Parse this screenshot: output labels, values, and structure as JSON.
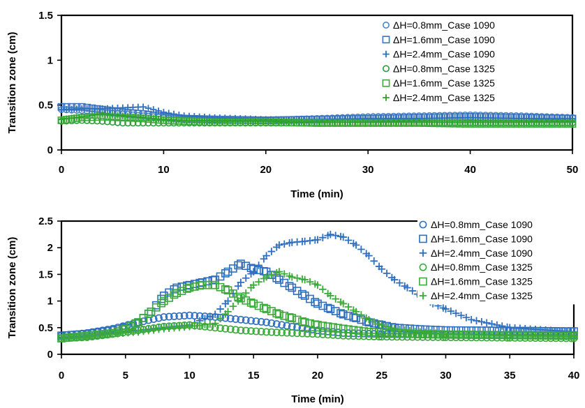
{
  "chart_data": [
    {
      "type": "scatter",
      "xlabel": "Time (min)",
      "ylabel": "Transition zone (cm)",
      "xlim": [
        0,
        50
      ],
      "ylim": [
        0,
        1.5
      ],
      "xticks": [
        "0",
        "10",
        "20",
        "30",
        "40",
        "50"
      ],
      "yticks": [
        "0",
        "0.5",
        "1",
        "1.5"
      ],
      "legend_position": "top-right",
      "grid": false,
      "series": [
        {
          "name": "ΔH=0.8mm_Case 1090",
          "marker": "circle",
          "color": "#4a86c8",
          "x": [
            0,
            2,
            4,
            6,
            8,
            10,
            12,
            15,
            20,
            25,
            30,
            35,
            40,
            45,
            50
          ],
          "y": [
            0.45,
            0.44,
            0.42,
            0.4,
            0.38,
            0.36,
            0.34,
            0.33,
            0.33,
            0.35,
            0.37,
            0.38,
            0.39,
            0.38,
            0.36
          ]
        },
        {
          "name": "ΔH=1.6mm_Case 1090",
          "marker": "square",
          "color": "#3a73c0",
          "x": [
            0,
            2,
            4,
            6,
            8,
            10,
            12,
            15,
            20,
            25,
            30,
            35,
            40,
            45,
            50
          ],
          "y": [
            0.48,
            0.48,
            0.45,
            0.42,
            0.4,
            0.37,
            0.35,
            0.34,
            0.33,
            0.34,
            0.35,
            0.36,
            0.37,
            0.36,
            0.35
          ]
        },
        {
          "name": "ΔH=2.4mm_Case 1090",
          "marker": "plus",
          "color": "#2e6fbf",
          "x": [
            0,
            2,
            4,
            6,
            8,
            10,
            12,
            15,
            20,
            25,
            30,
            35,
            40,
            45,
            50
          ],
          "y": [
            0.45,
            0.46,
            0.46,
            0.47,
            0.48,
            0.42,
            0.38,
            0.36,
            0.34,
            0.34,
            0.35,
            0.35,
            0.36,
            0.35,
            0.35
          ]
        },
        {
          "name": "ΔH=0.8mm_Case 1325",
          "marker": "circle",
          "color": "#2e9c3c",
          "x": [
            0,
            2,
            4,
            6,
            8,
            10,
            12,
            15,
            20,
            25,
            30,
            35,
            40,
            45,
            50
          ],
          "y": [
            0.32,
            0.33,
            0.32,
            0.3,
            0.3,
            0.3,
            0.3,
            0.3,
            0.3,
            0.3,
            0.3,
            0.3,
            0.3,
            0.3,
            0.3
          ]
        },
        {
          "name": "ΔH=1.6mm_Case 1325",
          "marker": "square",
          "color": "#3aaa3a",
          "x": [
            0,
            2,
            4,
            6,
            8,
            10,
            12,
            15,
            20,
            25,
            30,
            35,
            40,
            45,
            50
          ],
          "y": [
            0.33,
            0.36,
            0.37,
            0.36,
            0.35,
            0.33,
            0.32,
            0.31,
            0.31,
            0.3,
            0.3,
            0.3,
            0.29,
            0.29,
            0.29
          ]
        },
        {
          "name": "ΔH=2.4mm_Case 1325",
          "marker": "plus",
          "color": "#2aa22a",
          "x": [
            0,
            2,
            4,
            6,
            8,
            10,
            12,
            15,
            20,
            25,
            30,
            35,
            40,
            45,
            50
          ],
          "y": [
            0.34,
            0.37,
            0.4,
            0.38,
            0.36,
            0.34,
            0.33,
            0.32,
            0.32,
            0.31,
            0.31,
            0.31,
            0.31,
            0.31,
            0.31
          ]
        }
      ]
    },
    {
      "type": "scatter",
      "xlabel": "Time (min)",
      "ylabel": "Transition zone (cm)",
      "xlim": [
        0,
        40
      ],
      "ylim": [
        0,
        2.5
      ],
      "xticks": [
        "0",
        "5",
        "10",
        "15",
        "20",
        "25",
        "30",
        "35",
        "40"
      ],
      "yticks": [
        "0",
        "0.5",
        "1",
        "1.5",
        "2",
        "2.5"
      ],
      "legend_position": "top-right",
      "grid": false,
      "series": [
        {
          "name": "ΔH=0.8mm_Case 1090",
          "marker": "circle",
          "color": "#2e6fbf",
          "x": [
            0,
            2,
            4,
            6,
            8,
            10,
            12,
            14,
            16,
            18,
            20,
            22,
            25,
            30,
            35,
            40
          ],
          "y": [
            0.35,
            0.4,
            0.48,
            0.6,
            0.7,
            0.73,
            0.7,
            0.65,
            0.6,
            0.52,
            0.45,
            0.4,
            0.38,
            0.37,
            0.36,
            0.35
          ]
        },
        {
          "name": "ΔH=1.6mm_Case 1090",
          "marker": "square",
          "color": "#2e6fbf",
          "x": [
            0,
            2,
            4,
            5,
            6,
            7,
            8,
            9,
            10,
            11,
            12,
            13,
            14,
            15,
            16,
            17,
            18,
            19,
            20,
            21,
            22,
            23,
            24,
            25,
            26,
            28,
            30,
            35,
            40
          ],
          "y": [
            0.35,
            0.38,
            0.45,
            0.5,
            0.6,
            0.8,
            1.1,
            1.25,
            1.3,
            1.35,
            1.4,
            1.55,
            1.7,
            1.6,
            1.55,
            1.4,
            1.25,
            1.1,
            0.95,
            0.85,
            0.75,
            0.68,
            0.6,
            0.55,
            0.5,
            0.47,
            0.45,
            0.44,
            0.43
          ]
        },
        {
          "name": "ΔH=2.4mm_Case 1090",
          "marker": "plus",
          "color": "#2e6fbf",
          "x": [
            0,
            2,
            4,
            6,
            8,
            10,
            12,
            13,
            14,
            15,
            16,
            17,
            18,
            19,
            20,
            21,
            22,
            23,
            24,
            25,
            26,
            27,
            28,
            29,
            30,
            32,
            35,
            40
          ],
          "y": [
            0.32,
            0.35,
            0.4,
            0.45,
            0.5,
            0.55,
            0.75,
            1.0,
            1.35,
            1.55,
            1.85,
            2.05,
            2.1,
            2.12,
            2.15,
            2.25,
            2.2,
            2.05,
            1.85,
            1.6,
            1.4,
            1.25,
            1.1,
            0.95,
            0.85,
            0.65,
            0.5,
            0.42
          ]
        },
        {
          "name": "ΔH=0.8mm_Case 1325",
          "marker": "circle",
          "color": "#3aaa3a",
          "x": [
            0,
            2,
            4,
            6,
            8,
            10,
            12,
            14,
            16,
            18,
            20,
            22,
            25,
            30,
            35,
            40
          ],
          "y": [
            0.3,
            0.32,
            0.38,
            0.45,
            0.52,
            0.55,
            0.5,
            0.45,
            0.42,
            0.4,
            0.38,
            0.35,
            0.33,
            0.32,
            0.31,
            0.3
          ]
        },
        {
          "name": "ΔH=1.6mm_Case 1325",
          "marker": "square",
          "color": "#3aaa3a",
          "x": [
            0,
            2,
            4,
            5,
            6,
            7,
            8,
            9,
            10,
            11,
            12,
            13,
            14,
            15,
            16,
            17,
            18,
            19,
            20,
            22,
            24,
            26,
            28,
            30,
            35,
            40
          ],
          "y": [
            0.3,
            0.35,
            0.4,
            0.48,
            0.6,
            0.8,
            1.0,
            1.15,
            1.25,
            1.3,
            1.3,
            1.2,
            1.05,
            0.95,
            0.85,
            0.75,
            0.68,
            0.6,
            0.55,
            0.48,
            0.42,
            0.4,
            0.38,
            0.37,
            0.36,
            0.35
          ]
        },
        {
          "name": "ΔH=2.4mm_Case 1325",
          "marker": "plus",
          "color": "#3aaa3a",
          "x": [
            0,
            2,
            4,
            6,
            8,
            10,
            12,
            13,
            14,
            15,
            16,
            17,
            18,
            19,
            20,
            21,
            22,
            23,
            24,
            25,
            26,
            28,
            30,
            35,
            40
          ],
          "y": [
            0.3,
            0.32,
            0.38,
            0.42,
            0.48,
            0.52,
            0.58,
            0.8,
            1.05,
            1.3,
            1.45,
            1.55,
            1.45,
            1.4,
            1.3,
            1.1,
            0.95,
            0.8,
            0.65,
            0.55,
            0.48,
            0.42,
            0.38,
            0.35,
            0.33
          ]
        }
      ]
    }
  ]
}
